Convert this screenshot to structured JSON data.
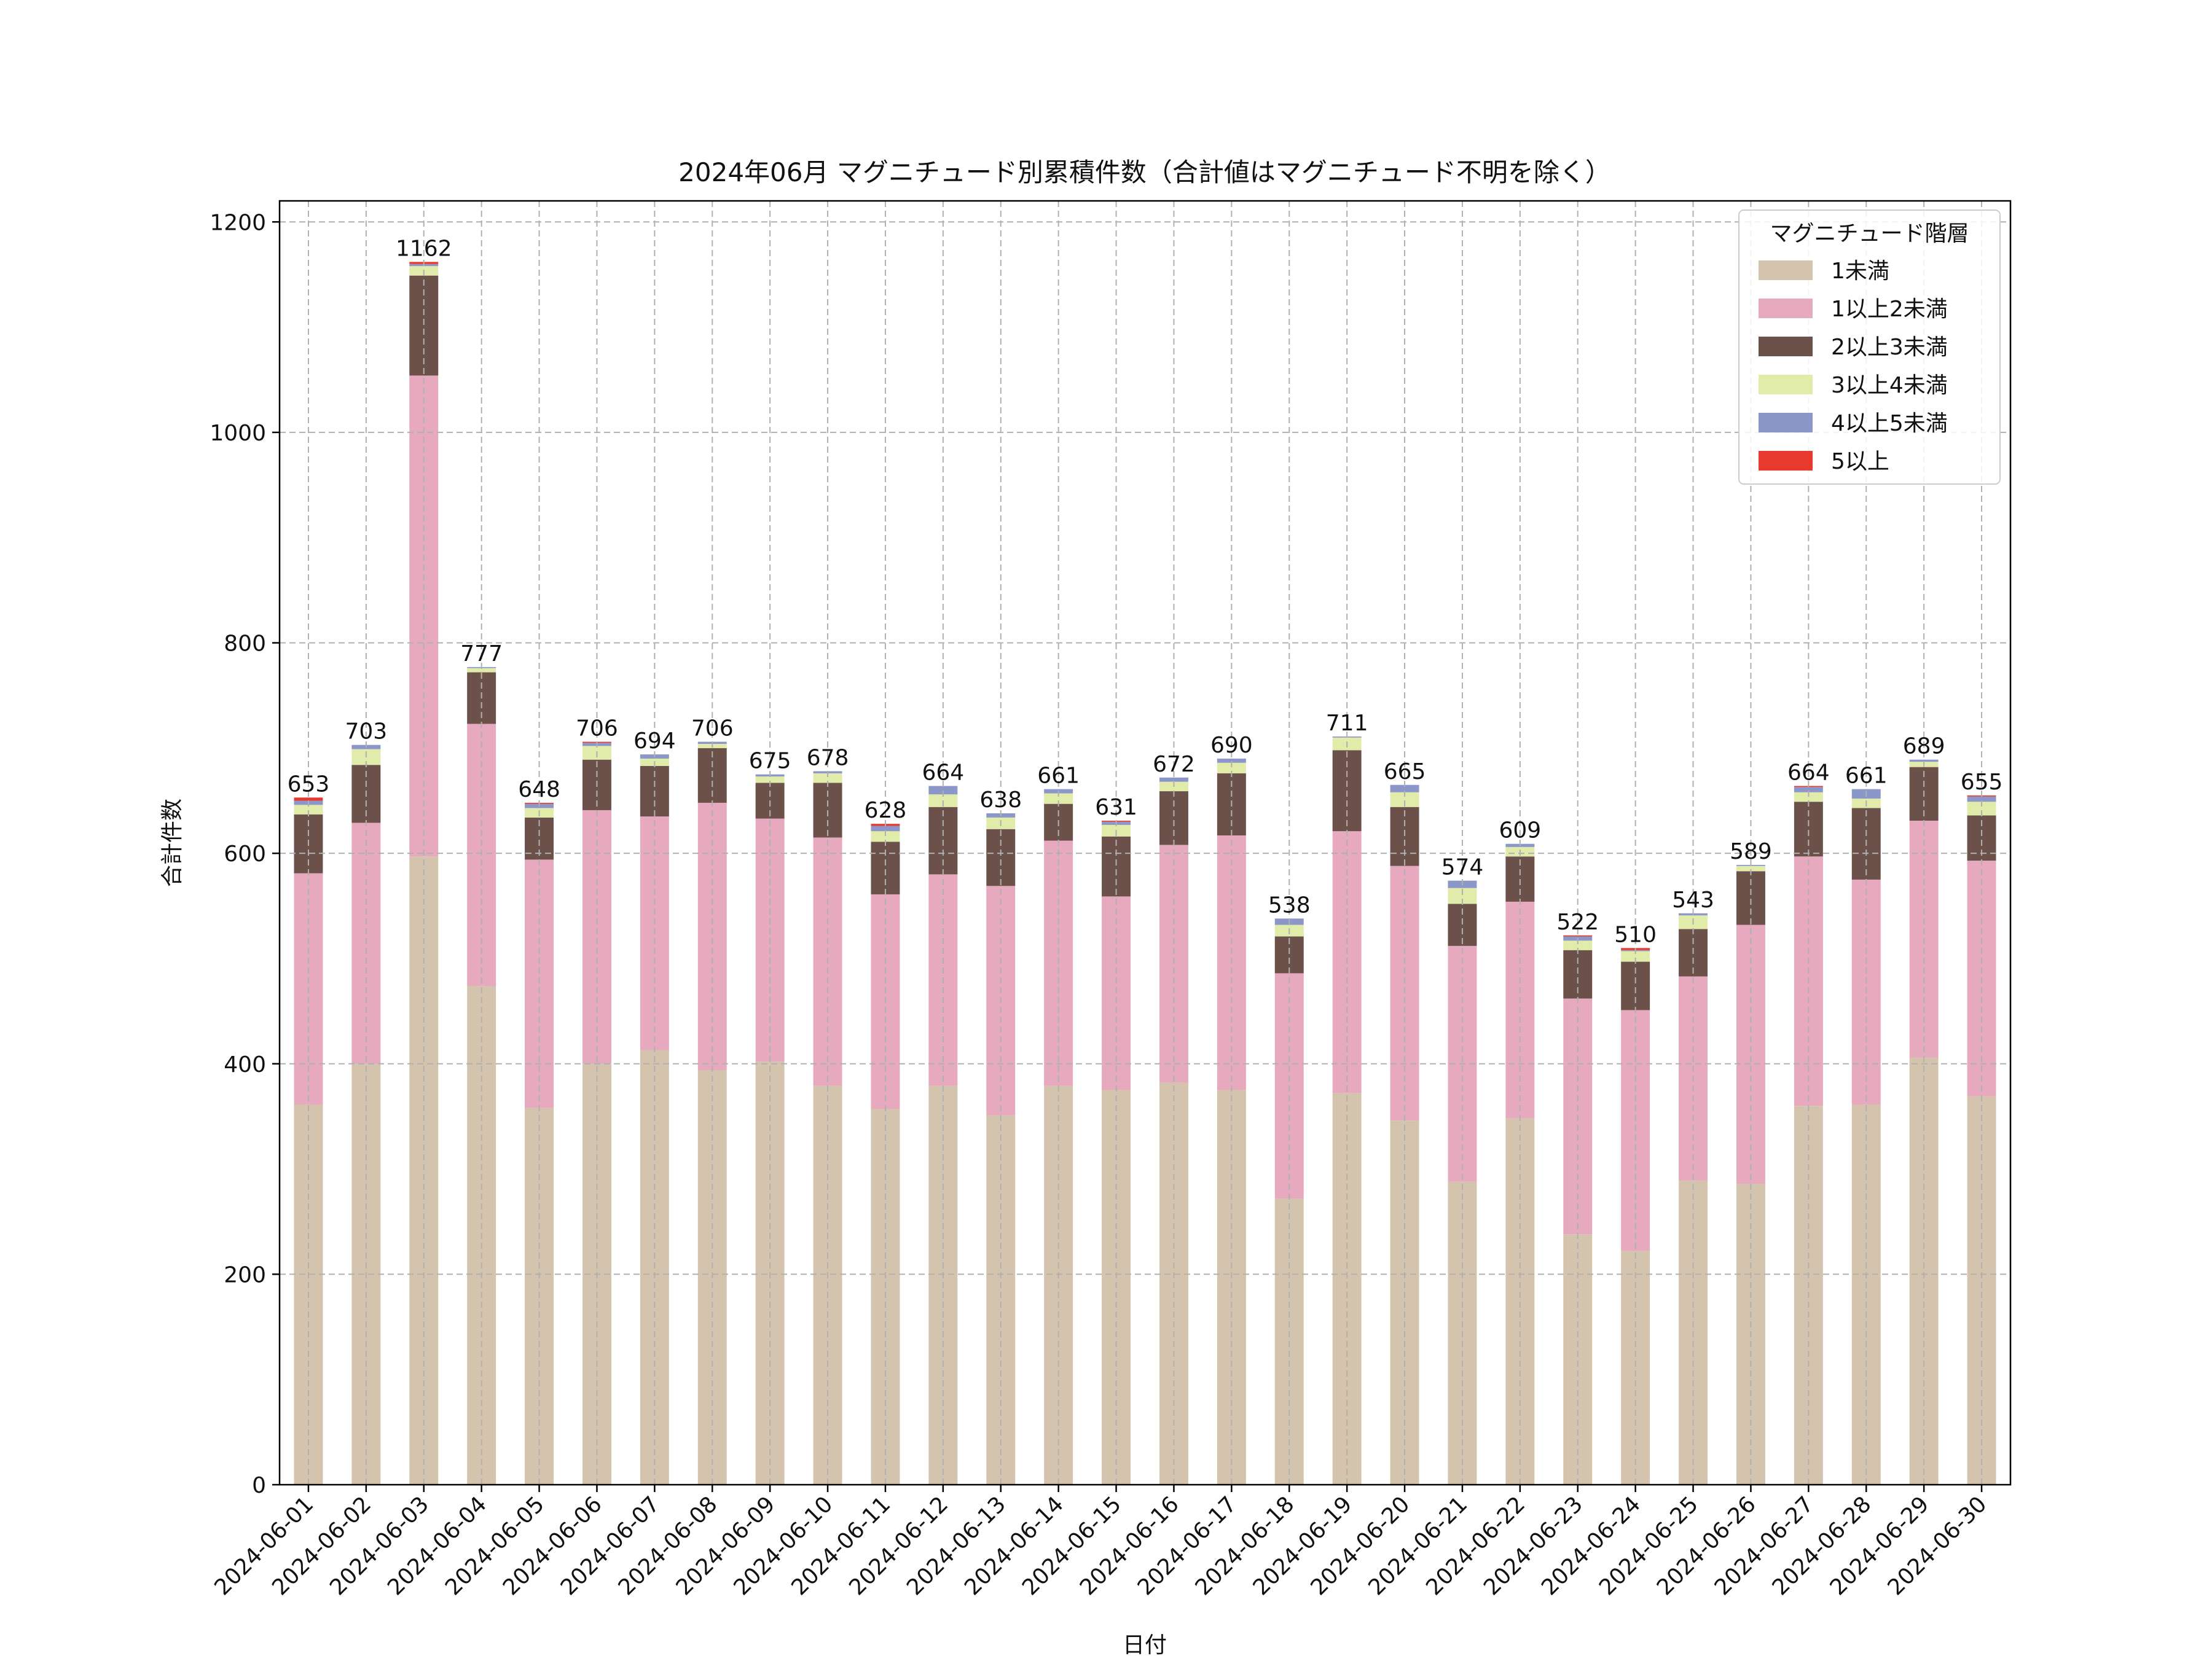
{
  "chart_data": {
    "type": "bar",
    "stacked": true,
    "title": "2024年06月 マグニチュード別累積件数（合計値はマグニチュード不明を除く）",
    "xlabel": "日付",
    "ylabel": "合計件数",
    "ylim": [
      0,
      1220
    ],
    "yticks": [
      0,
      200,
      400,
      600,
      800,
      1000,
      1200
    ],
    "grid": true,
    "legend": {
      "title": "マグニチュード階層",
      "placement": "top-right"
    },
    "categories": [
      "2024-06-01",
      "2024-06-02",
      "2024-06-03",
      "2024-06-04",
      "2024-06-05",
      "2024-06-06",
      "2024-06-07",
      "2024-06-08",
      "2024-06-09",
      "2024-06-10",
      "2024-06-11",
      "2024-06-12",
      "2024-06-13",
      "2024-06-14",
      "2024-06-15",
      "2024-06-16",
      "2024-06-17",
      "2024-06-18",
      "2024-06-19",
      "2024-06-20",
      "2024-06-21",
      "2024-06-22",
      "2024-06-23",
      "2024-06-24",
      "2024-06-25",
      "2024-06-26",
      "2024-06-27",
      "2024-06-28",
      "2024-06-29",
      "2024-06-30"
    ],
    "totals": [
      653,
      703,
      1162,
      777,
      648,
      706,
      694,
      706,
      675,
      678,
      628,
      664,
      638,
      661,
      631,
      672,
      690,
      538,
      711,
      665,
      574,
      609,
      522,
      510,
      543,
      589,
      664,
      661,
      689,
      655
    ],
    "series": [
      {
        "name": "1未満",
        "color": "#d5c4ad",
        "values": [
          361,
          400,
          597,
          474,
          358,
          400,
          413,
          394,
          402,
          379,
          357,
          379,
          351,
          379,
          375,
          382,
          375,
          272,
          372,
          346,
          288,
          348,
          238,
          222,
          289,
          286,
          360,
          361,
          406,
          369
        ]
      },
      {
        "name": "1以上2未満",
        "color": "#e7a9bd",
        "values": [
          220,
          229,
          457,
          249,
          236,
          241,
          222,
          254,
          231,
          236,
          204,
          201,
          218,
          233,
          184,
          226,
          242,
          214,
          249,
          242,
          224,
          206,
          224,
          229,
          194,
          246,
          237,
          214,
          225,
          224
        ]
      },
      {
        "name": "2以上3未満",
        "color": "#6c514b",
        "values": [
          56,
          55,
          95,
          49,
          40,
          48,
          48,
          52,
          34,
          52,
          50,
          64,
          54,
          35,
          57,
          51,
          59,
          35,
          77,
          56,
          40,
          43,
          46,
          46,
          45,
          51,
          52,
          68,
          51,
          43
        ]
      },
      {
        "name": "3以上4未満",
        "color": "#e1ebaa",
        "values": [
          9,
          15,
          9,
          4,
          9,
          13,
          7,
          4,
          6,
          9,
          10,
          12,
          11,
          10,
          11,
          9,
          10,
          11,
          12,
          14,
          15,
          9,
          9,
          10,
          13,
          5,
          9,
          9,
          5,
          13
        ]
      },
      {
        "name": "4以上5未満",
        "color": "#8b97c8",
        "values": [
          4,
          4,
          2,
          1,
          4,
          3,
          4,
          2,
          2,
          2,
          5,
          8,
          4,
          4,
          3,
          4,
          4,
          6,
          1,
          7,
          7,
          3,
          4,
          1,
          2,
          1,
          5,
          9,
          2,
          5
        ]
      },
      {
        "name": "5以上",
        "color": "#e8392f",
        "values": [
          3,
          0,
          2,
          0,
          1,
          1,
          0,
          0,
          0,
          0,
          2,
          0,
          0,
          0,
          1,
          0,
          0,
          0,
          0,
          0,
          0,
          0,
          1,
          2,
          0,
          0,
          1,
          0,
          0,
          1
        ]
      }
    ]
  }
}
